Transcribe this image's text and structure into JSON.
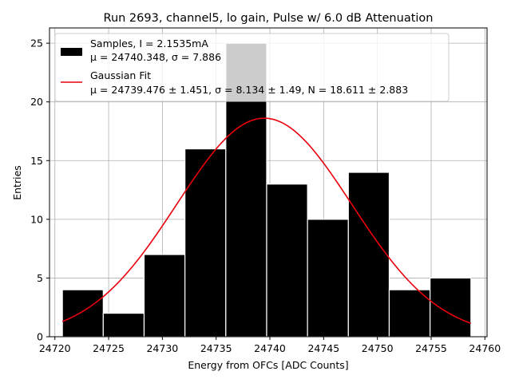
{
  "chart_data": {
    "type": "bar",
    "title": "Run 2693, channel5, lo gain, Pulse w/ 6.0 dB Attenuation",
    "xlabel": "Energy from OFCs [ADC Counts]",
    "ylabel": "Entries",
    "xlim": [
      24719.5,
      24760.2
    ],
    "ylim": [
      0,
      26.3
    ],
    "xticks": [
      24720,
      24725,
      24730,
      24735,
      24740,
      24745,
      24750,
      24755,
      24760
    ],
    "yticks": [
      0,
      5,
      10,
      15,
      20,
      25
    ],
    "grid": true,
    "legend_position": "top-left",
    "bin_edges": [
      24720.7,
      24724.5,
      24728.3,
      24732.1,
      24735.9,
      24739.7,
      24743.5,
      24747.3,
      24751.1,
      24754.9,
      24758.7
    ],
    "series": [
      {
        "name": "Samples, I = 2.1535mA",
        "stats": "μ = 24740.348, σ = 7.886",
        "kind": "histogram",
        "color": "#000000",
        "values": [
          4,
          2,
          7,
          16,
          25,
          13,
          10,
          14,
          4,
          5
        ]
      },
      {
        "name": "Gaussian Fit",
        "stats": "μ = 24739.476 ± 1.451, σ = 8.134 ± 1.49, N = 18.611 ± 2.883",
        "kind": "line",
        "color": "#e8000b",
        "mu": 24739.476,
        "sigma": 8.134,
        "amplitude": 18.611,
        "x_range": [
          24720.7,
          24758.7
        ]
      }
    ]
  }
}
